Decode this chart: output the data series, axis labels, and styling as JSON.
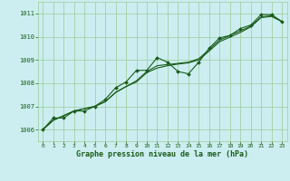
{
  "title": "Graphe pression niveau de la mer (hPa)",
  "bg_color": "#cceef0",
  "grid_color": "#99cc99",
  "line_color": "#1a5c1a",
  "marker_color": "#1a5c1a",
  "xlim": [
    -0.5,
    23.5
  ],
  "ylim": [
    1005.5,
    1011.5
  ],
  "yticks": [
    1006,
    1007,
    1008,
    1009,
    1010,
    1011
  ],
  "xticks": [
    0,
    1,
    2,
    3,
    4,
    5,
    6,
    7,
    8,
    9,
    10,
    11,
    12,
    13,
    14,
    15,
    16,
    17,
    18,
    19,
    20,
    21,
    22,
    23
  ],
  "series1_x": [
    0,
    1,
    2,
    3,
    4,
    5,
    6,
    7,
    8,
    9,
    10,
    11,
    12,
    13,
    14,
    15,
    16,
    17,
    18,
    19,
    20,
    21,
    22,
    23
  ],
  "series1_y": [
    1006.0,
    1006.5,
    1006.5,
    1006.8,
    1006.8,
    1007.0,
    1007.3,
    1007.8,
    1008.05,
    1008.55,
    1008.55,
    1009.1,
    1008.9,
    1008.5,
    1008.4,
    1008.9,
    1009.5,
    1009.95,
    1010.05,
    1010.35,
    1010.5,
    1010.95,
    1010.95,
    1010.65
  ],
  "series2_x": [
    0,
    1,
    2,
    3,
    4,
    5,
    6,
    7,
    8,
    9,
    10,
    11,
    12,
    13,
    14,
    15,
    16,
    17,
    18,
    19,
    20,
    21,
    22,
    23
  ],
  "series2_y": [
    1006.0,
    1006.4,
    1006.6,
    1006.8,
    1006.9,
    1007.0,
    1007.2,
    1007.6,
    1007.85,
    1008.1,
    1008.5,
    1008.75,
    1008.8,
    1008.85,
    1008.9,
    1009.05,
    1009.45,
    1009.85,
    1010.05,
    1010.25,
    1010.45,
    1010.85,
    1010.9,
    1010.65
  ],
  "series3_x": [
    0,
    1,
    2,
    3,
    4,
    5,
    6,
    7,
    8,
    9,
    10,
    11,
    12,
    13,
    14,
    15,
    16,
    17,
    18,
    19,
    20,
    21,
    22,
    23
  ],
  "series3_y": [
    1006.0,
    1006.4,
    1006.6,
    1006.8,
    1006.9,
    1007.0,
    1007.2,
    1007.6,
    1007.85,
    1008.05,
    1008.45,
    1008.65,
    1008.75,
    1008.82,
    1008.87,
    1009.0,
    1009.38,
    1009.78,
    1009.98,
    1010.18,
    1010.42,
    1010.82,
    1010.87,
    1010.65
  ]
}
